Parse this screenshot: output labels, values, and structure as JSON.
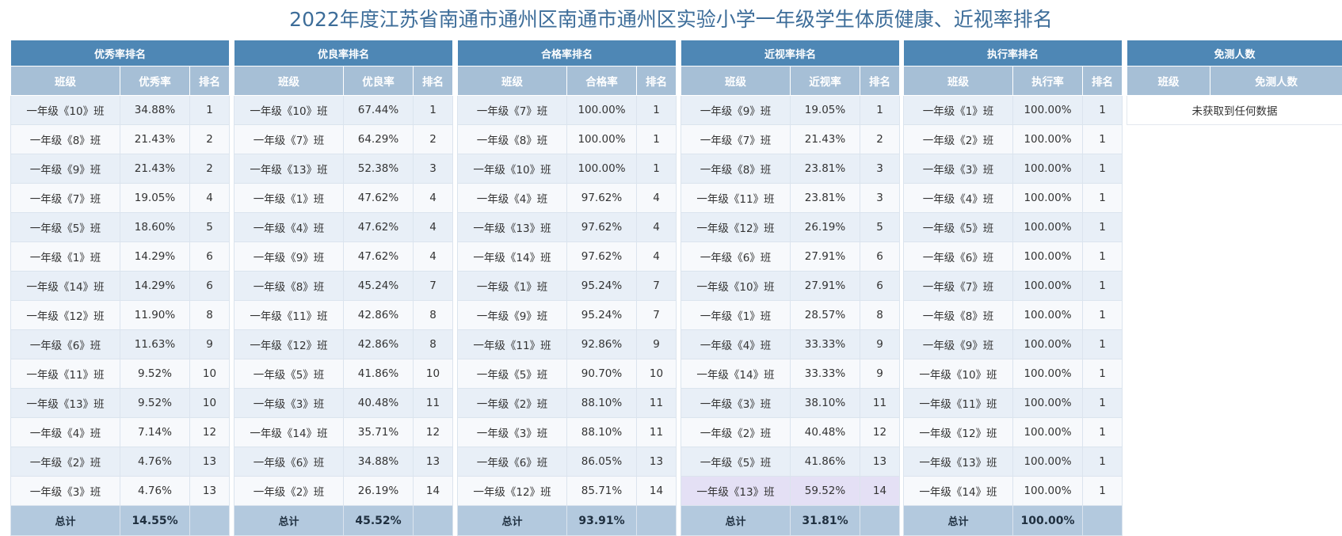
{
  "title": "2022年度江苏省南通市通州区南通市通州区实验小学一年级学生体质健康、近视率排名",
  "tables": [
    {
      "title": "优秀率排名",
      "columns": [
        "班级",
        "优秀率",
        "排名"
      ],
      "rows": [
        [
          "一年级《10》班",
          "34.88%",
          "1"
        ],
        [
          "一年级《8》班",
          "21.43%",
          "2"
        ],
        [
          "一年级《9》班",
          "21.43%",
          "2"
        ],
        [
          "一年级《7》班",
          "19.05%",
          "4"
        ],
        [
          "一年级《5》班",
          "18.60%",
          "5"
        ],
        [
          "一年级《1》班",
          "14.29%",
          "6"
        ],
        [
          "一年级《14》班",
          "14.29%",
          "6"
        ],
        [
          "一年级《12》班",
          "11.90%",
          "8"
        ],
        [
          "一年级《6》班",
          "11.63%",
          "9"
        ],
        [
          "一年级《11》班",
          "9.52%",
          "10"
        ],
        [
          "一年级《13》班",
          "9.52%",
          "10"
        ],
        [
          "一年级《4》班",
          "7.14%",
          "12"
        ],
        [
          "一年级《2》班",
          "4.76%",
          "13"
        ],
        [
          "一年级《3》班",
          "4.76%",
          "13"
        ]
      ],
      "total_label": "总计",
      "total_value": "14.55%"
    },
    {
      "title": "优良率排名",
      "columns": [
        "班级",
        "优良率",
        "排名"
      ],
      "rows": [
        [
          "一年级《10》班",
          "67.44%",
          "1"
        ],
        [
          "一年级《7》班",
          "64.29%",
          "2"
        ],
        [
          "一年级《13》班",
          "52.38%",
          "3"
        ],
        [
          "一年级《1》班",
          "47.62%",
          "4"
        ],
        [
          "一年级《4》班",
          "47.62%",
          "4"
        ],
        [
          "一年级《9》班",
          "47.62%",
          "4"
        ],
        [
          "一年级《8》班",
          "45.24%",
          "7"
        ],
        [
          "一年级《11》班",
          "42.86%",
          "8"
        ],
        [
          "一年级《12》班",
          "42.86%",
          "8"
        ],
        [
          "一年级《5》班",
          "41.86%",
          "10"
        ],
        [
          "一年级《3》班",
          "40.48%",
          "11"
        ],
        [
          "一年级《14》班",
          "35.71%",
          "12"
        ],
        [
          "一年级《6》班",
          "34.88%",
          "13"
        ],
        [
          "一年级《2》班",
          "26.19%",
          "14"
        ]
      ],
      "total_label": "总计",
      "total_value": "45.52%"
    },
    {
      "title": "合格率排名",
      "columns": [
        "班级",
        "合格率",
        "排名"
      ],
      "rows": [
        [
          "一年级《7》班",
          "100.00%",
          "1"
        ],
        [
          "一年级《8》班",
          "100.00%",
          "1"
        ],
        [
          "一年级《10》班",
          "100.00%",
          "1"
        ],
        [
          "一年级《4》班",
          "97.62%",
          "4"
        ],
        [
          "一年级《13》班",
          "97.62%",
          "4"
        ],
        [
          "一年级《14》班",
          "97.62%",
          "4"
        ],
        [
          "一年级《1》班",
          "95.24%",
          "7"
        ],
        [
          "一年级《9》班",
          "95.24%",
          "7"
        ],
        [
          "一年级《11》班",
          "92.86%",
          "9"
        ],
        [
          "一年级《5》班",
          "90.70%",
          "10"
        ],
        [
          "一年级《2》班",
          "88.10%",
          "11"
        ],
        [
          "一年级《3》班",
          "88.10%",
          "11"
        ],
        [
          "一年级《6》班",
          "86.05%",
          "13"
        ],
        [
          "一年级《12》班",
          "85.71%",
          "14"
        ]
      ],
      "total_label": "总计",
      "total_value": "93.91%"
    },
    {
      "title": "近视率排名",
      "columns": [
        "班级",
        "近视率",
        "排名"
      ],
      "rows": [
        [
          "一年级《9》班",
          "19.05%",
          "1"
        ],
        [
          "一年级《7》班",
          "21.43%",
          "2"
        ],
        [
          "一年级《8》班",
          "23.81%",
          "3"
        ],
        [
          "一年级《11》班",
          "23.81%",
          "3"
        ],
        [
          "一年级《12》班",
          "26.19%",
          "5"
        ],
        [
          "一年级《6》班",
          "27.91%",
          "6"
        ],
        [
          "一年级《10》班",
          "27.91%",
          "6"
        ],
        [
          "一年级《1》班",
          "28.57%",
          "8"
        ],
        [
          "一年级《4》班",
          "33.33%",
          "9"
        ],
        [
          "一年级《14》班",
          "33.33%",
          "9"
        ],
        [
          "一年级《3》班",
          "38.10%",
          "11"
        ],
        [
          "一年级《2》班",
          "40.48%",
          "12"
        ],
        [
          "一年级《5》班",
          "41.86%",
          "13"
        ],
        [
          "一年级《13》班",
          "59.52%",
          "14"
        ]
      ],
      "highlight_row": 13,
      "total_label": "总计",
      "total_value": "31.81%"
    },
    {
      "title": "执行率排名",
      "columns": [
        "班级",
        "执行率",
        "排名"
      ],
      "rows": [
        [
          "一年级《1》班",
          "100.00%",
          "1"
        ],
        [
          "一年级《2》班",
          "100.00%",
          "1"
        ],
        [
          "一年级《3》班",
          "100.00%",
          "1"
        ],
        [
          "一年级《4》班",
          "100.00%",
          "1"
        ],
        [
          "一年级《5》班",
          "100.00%",
          "1"
        ],
        [
          "一年级《6》班",
          "100.00%",
          "1"
        ],
        [
          "一年级《7》班",
          "100.00%",
          "1"
        ],
        [
          "一年级《8》班",
          "100.00%",
          "1"
        ],
        [
          "一年级《9》班",
          "100.00%",
          "1"
        ],
        [
          "一年级《10》班",
          "100.00%",
          "1"
        ],
        [
          "一年级《11》班",
          "100.00%",
          "1"
        ],
        [
          "一年级《12》班",
          "100.00%",
          "1"
        ],
        [
          "一年级《13》班",
          "100.00%",
          "1"
        ],
        [
          "一年级《14》班",
          "100.00%",
          "1"
        ]
      ],
      "total_label": "总计",
      "total_value": "100.00%"
    }
  ],
  "exempt": {
    "title": "免测人数",
    "columns": [
      "班级",
      "免测人数"
    ],
    "empty_message": "未获取到任何数据"
  },
  "colors": {
    "group_header": "#4e87b5",
    "column_header": "#a6bfd6",
    "row_odd": "#e8eff7",
    "row_even": "#f7f9fc",
    "highlight": "#e4e0f5",
    "total_row": "#b3c9de",
    "title_text": "#3d6d99"
  }
}
